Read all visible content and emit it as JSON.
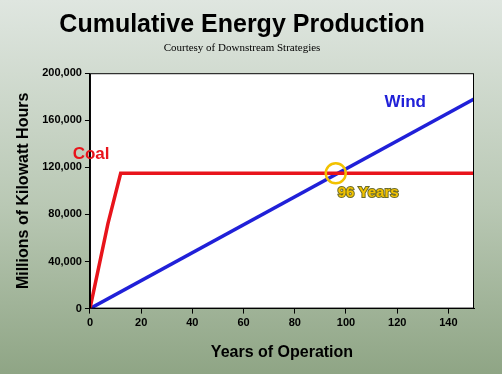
{
  "chart_data": {
    "type": "line",
    "title": "Cumulative Energy Production",
    "subtitle": "Courtesy of Downstream Strategies",
    "x_label": "Years of Operation",
    "y_label": "Millions of Kilowatt Hours",
    "series": [
      {
        "name": "Coal",
        "color": "#e8141b",
        "x": [
          0,
          7,
          12,
          150
        ],
        "values": [
          0,
          72000,
          115000,
          115000
        ]
      },
      {
        "name": "Wind",
        "color": "#2020d8",
        "x": [
          0,
          150
        ],
        "values": [
          0,
          178000
        ]
      }
    ],
    "xlim": [
      0,
      150
    ],
    "xticks": [
      0,
      20,
      40,
      60,
      80,
      100,
      120,
      140
    ],
    "ylim": [
      0,
      200000
    ],
    "yticks": [
      0,
      {
        "value": 40000,
        "label": "40,000"
      },
      {
        "value": 80000,
        "label": "80,000"
      },
      {
        "value": 120000,
        "label": "120,000"
      },
      {
        "value": 160000,
        "label": "160,000"
      },
      {
        "value": 200000,
        "label": "200,000"
      }
    ],
    "grid": false,
    "annotations": [
      {
        "text": "96 Years",
        "x": 96,
        "y": 115000,
        "color": "#f2c200"
      }
    ]
  }
}
